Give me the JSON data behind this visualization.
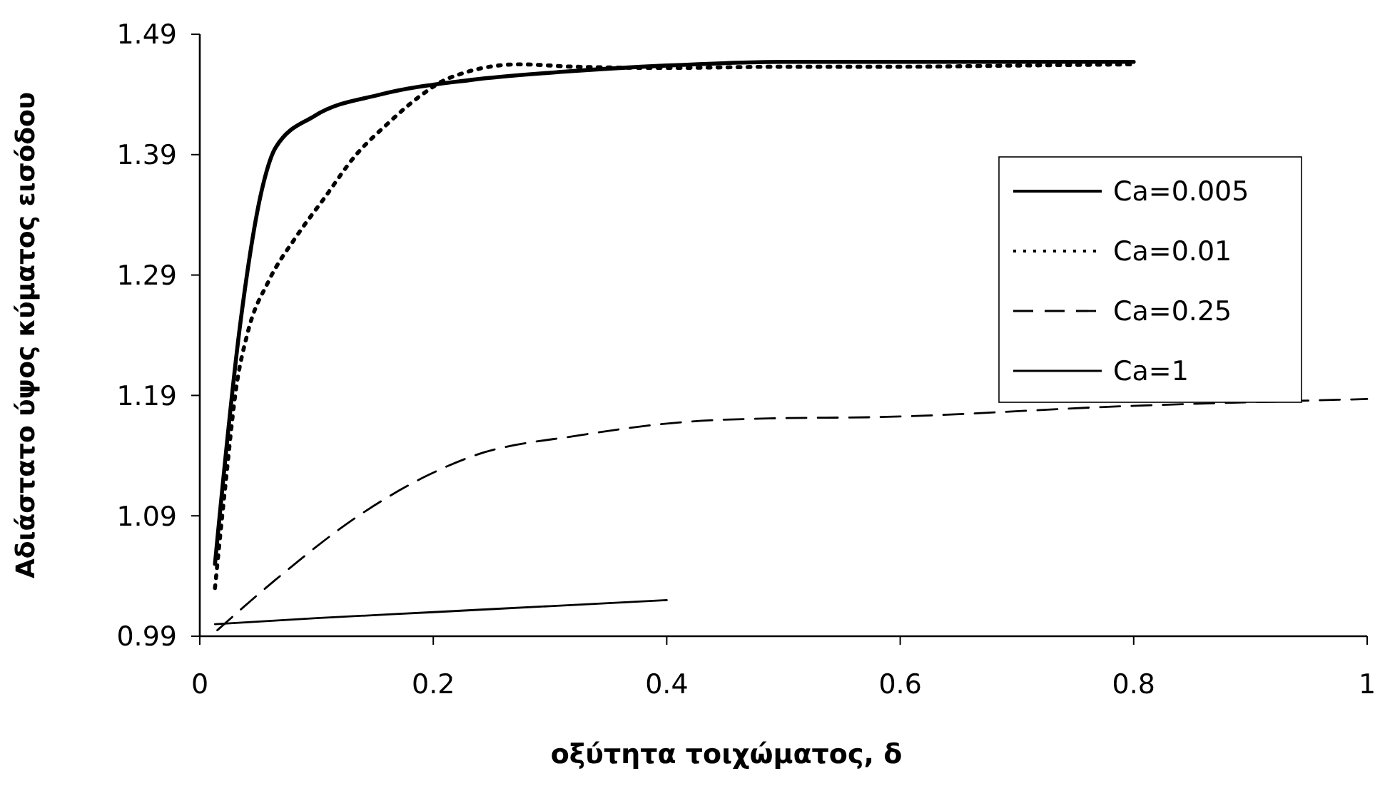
{
  "chart_data": {
    "type": "line",
    "xlabel": "οξύτητα τοιχώματος, δ",
    "ylabel": "Αδιάστατο ύψος κύματος εισόδου",
    "xlim": [
      0,
      1
    ],
    "ylim": [
      0.99,
      1.49
    ],
    "xticks": [
      0,
      0.2,
      0.4,
      0.6,
      0.8,
      1
    ],
    "yticks": [
      0.99,
      1.09,
      1.19,
      1.29,
      1.39,
      1.49
    ],
    "grid": false,
    "legend": "top right",
    "marker": "none",
    "series": [
      {
        "name": "Ca=0.005",
        "color": "#000000",
        "line_style": "solid",
        "x": [
          0.013,
          0.035,
          0.053,
          0.065,
          0.098,
          0.155,
          0.232,
          0.314,
          0.4,
          0.5,
          0.6,
          0.7,
          0.8
        ],
        "values": [
          1.05,
          1.252,
          1.36,
          1.396,
          1.422,
          1.44,
          1.452,
          1.459,
          1.464,
          1.467,
          1.467,
          1.467,
          1.467
        ]
      },
      {
        "name": "Ca=0.01",
        "color": "#000000",
        "line_style": "dotted",
        "x": [
          0.013,
          0.022,
          0.031,
          0.041,
          0.059,
          0.082,
          0.106,
          0.134,
          0.159,
          0.192,
          0.212,
          0.273,
          0.322,
          0.4,
          0.5,
          0.6,
          0.7,
          0.8
        ],
        "values": [
          1.03,
          1.116,
          1.195,
          1.242,
          1.285,
          1.321,
          1.353,
          1.39,
          1.414,
          1.441,
          1.453,
          1.465,
          1.463,
          1.462,
          1.463,
          1.463,
          1.464,
          1.465
        ]
      },
      {
        "name": "Ca=0.25",
        "color": "#000000",
        "line_style": "dashed",
        "x": [
          0.015,
          0.065,
          0.139,
          0.196,
          0.232,
          0.326,
          0.416,
          0.493,
          0.58,
          0.79,
          1.0
        ],
        "values": [
          0.995,
          1.037,
          1.092,
          1.124,
          1.139,
          1.157,
          1.168,
          1.171,
          1.172,
          1.181,
          1.187
        ]
      },
      {
        "name": "Ca=1",
        "color": "#000000",
        "line_style": "solid",
        "x": [
          0.013,
          0.1,
          0.2,
          0.3,
          0.4
        ],
        "values": [
          1.0,
          1.005,
          1.01,
          1.015,
          1.02
        ]
      }
    ]
  }
}
